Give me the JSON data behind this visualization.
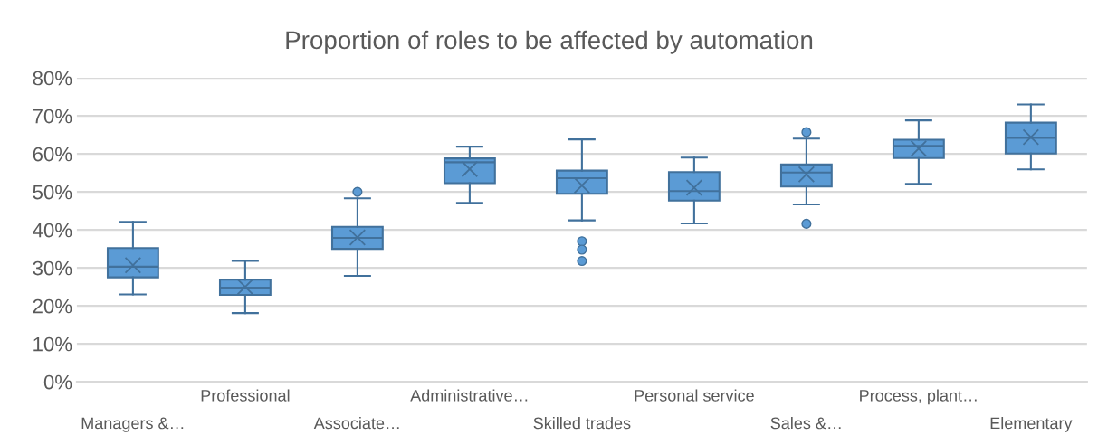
{
  "chart_data": {
    "type": "box",
    "title": "Proportion of roles to be affected by automation",
    "categories": [
      "Managers &…",
      "Professional",
      "Associate…",
      "Administrative…",
      "Skilled trades",
      "Personal service",
      "Sales &…",
      "Process, plant…",
      "Elementary"
    ],
    "color": "#5b9bd5",
    "boxes": [
      {
        "low": 23,
        "q1": 27.5,
        "median": 30.3,
        "q3": 35.2,
        "high": 42.1,
        "mean": 30.7
      },
      {
        "low": 18.1,
        "q1": 22.9,
        "median": 24.8,
        "q3": 26.9,
        "high": 31.8,
        "mean": 25
      },
      {
        "low": 27.9,
        "q1": 35,
        "median": 37.9,
        "q3": 40.8,
        "high": 48.3,
        "mean": 38,
        "outliers": [
          50
        ]
      },
      {
        "low": 47.1,
        "q1": 52.3,
        "median": 57.8,
        "q3": 58.8,
        "high": 61.9,
        "mean": 56
      },
      {
        "low": 42.5,
        "q1": 49.5,
        "median": 53.6,
        "q3": 55.6,
        "high": 63.8,
        "mean": 51.7,
        "outliers": [
          37,
          34.8,
          31.8
        ]
      },
      {
        "low": 41.7,
        "q1": 47.7,
        "median": 50.2,
        "q3": 55.2,
        "high": 59,
        "mean": 51.1
      },
      {
        "low": 46.7,
        "q1": 51.4,
        "median": 55.1,
        "q3": 57.2,
        "high": 64,
        "mean": 54.6,
        "outliers": [
          65.7,
          41.6
        ]
      },
      {
        "low": 52.1,
        "q1": 58.9,
        "median": 62.1,
        "q3": 63.7,
        "high": 68.8,
        "mean": 61.4
      },
      {
        "low": 55.9,
        "q1": 60.1,
        "median": 64.2,
        "q3": 68.2,
        "high": 73,
        "mean": 64.4
      }
    ],
    "ylim": [
      0,
      80
    ],
    "yticks": [
      {
        "value": 0,
        "label": "0%"
      },
      {
        "value": 10,
        "label": "10%"
      },
      {
        "value": 20,
        "label": "20%"
      },
      {
        "value": 30,
        "label": "30%"
      },
      {
        "value": 40,
        "label": "40%"
      },
      {
        "value": 50,
        "label": "50%"
      },
      {
        "value": 60,
        "label": "60%"
      },
      {
        "value": 70,
        "label": "70%"
      },
      {
        "value": 80,
        "label": "80%"
      }
    ],
    "grid": "y",
    "legend": false
  }
}
